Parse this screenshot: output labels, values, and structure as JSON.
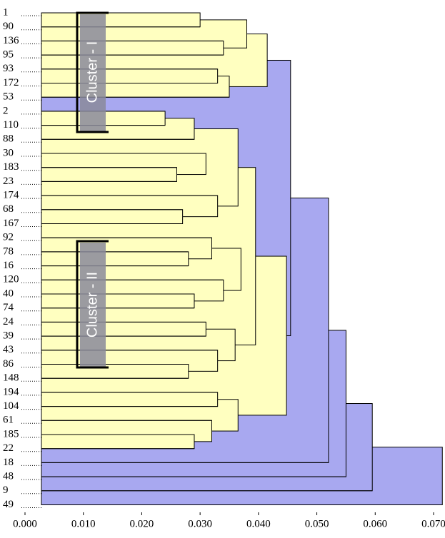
{
  "chart_data": {
    "type": "dendrogram",
    "annotations": [
      "Cluster - I",
      "Cluster - II"
    ],
    "xlim": [
      0,
      0.07
    ],
    "xticks": [
      {
        "value": 0,
        "label": "0.000"
      },
      {
        "value": 0.01,
        "label": "0.010"
      },
      {
        "value": 0.02,
        "label": "0.020"
      },
      {
        "value": 0.03,
        "label": "0.030"
      },
      {
        "value": 0.04,
        "label": "0.040"
      },
      {
        "value": 0.05,
        "label": "0.050"
      },
      {
        "value": 0.06,
        "label": "0.060"
      },
      {
        "value": 0.07,
        "label": "0.070"
      }
    ],
    "tree": {
      "height": 0.0715,
      "color": "#a8a8f0",
      "children": [
        {
          "height": 0.0595,
          "color": "#a8a8f0",
          "children": [
            {
              "height": 0.055,
              "color": "#a8a8f0",
              "children": [
                {
                  "height": 0.052,
                  "color": "#a8a8f0",
                  "children": [
                    {
                      "height": 0.0455,
                      "color": "#a8a8f0",
                      "children": [
                        {
                          "height": 0.0415,
                          "color": "#ffffc0",
                          "children": [
                            {
                              "height": 0.038,
                              "color": "#ffffc0",
                              "children": [
                                {
                                  "height": 0.03,
                                  "color": "#ffffc0",
                                  "children": [
                                    {
                                      "label": "1"
                                    },
                                    {
                                      "label": "90"
                                    }
                                  ]
                                },
                                {
                                  "height": 0.034,
                                  "color": "#ffffc0",
                                  "children": [
                                    {
                                      "label": "136"
                                    },
                                    {
                                      "label": "95"
                                    }
                                  ]
                                }
                              ]
                            },
                            {
                              "height": 0.035,
                              "color": "#ffffc0",
                              "children": [
                                {
                                  "height": 0.033,
                                  "color": "#ffffc0",
                                  "children": [
                                    {
                                      "label": "93"
                                    },
                                    {
                                      "label": "172"
                                    }
                                  ]
                                },
                                {
                                  "label": "53"
                                }
                              ]
                            }
                          ]
                        },
                        {
                          "height": 0.0448,
                          "color": "#ffffc0",
                          "children": [
                            {
                              "height": 0.0395,
                              "color": "#ffffc0",
                              "children": [
                                {
                                  "height": 0.0365,
                                  "color": "#ffffc0",
                                  "children": [
                                    {
                                      "height": 0.029,
                                      "color": "#ffffc0",
                                      "children": [
                                        {
                                          "height": 0.024,
                                          "color": "#ffffc0",
                                          "children": [
                                            {
                                              "label": "2"
                                            },
                                            {
                                              "label": "110"
                                            }
                                          ]
                                        },
                                        {
                                          "label": "88"
                                        }
                                      ]
                                    },
                                    {
                                      "height": 0.031,
                                      "color": "#ffffc0",
                                      "children": [
                                        {
                                          "label": "30"
                                        },
                                        {
                                          "height": 0.026,
                                          "color": "#ffffc0",
                                          "children": [
                                            {
                                              "label": "183"
                                            },
                                            {
                                              "label": "23"
                                            }
                                          ]
                                        }
                                      ]
                                    },
                                    {
                                      "height": 0.033,
                                      "color": "#ffffc0",
                                      "children": [
                                        {
                                          "label": "174"
                                        },
                                        {
                                          "height": 0.027,
                                          "color": "#ffffc0",
                                          "children": [
                                            {
                                              "label": "68"
                                            },
                                            {
                                              "label": "167"
                                            }
                                          ]
                                        }
                                      ]
                                    }
                                  ]
                                },
                                {
                                  "height": 0.037,
                                  "color": "#ffffc0",
                                  "children": [
                                    {
                                      "height": 0.032,
                                      "color": "#ffffc0",
                                      "children": [
                                        {
                                          "label": "92"
                                        },
                                        {
                                          "height": 0.028,
                                          "color": "#ffffc0",
                                          "children": [
                                            {
                                              "label": "78"
                                            },
                                            {
                                              "label": "16"
                                            }
                                          ]
                                        }
                                      ]
                                    },
                                    {
                                      "height": 0.034,
                                      "color": "#ffffc0",
                                      "children": [
                                        {
                                          "label": "120"
                                        },
                                        {
                                          "height": 0.029,
                                          "color": "#ffffc0",
                                          "children": [
                                            {
                                              "label": "40"
                                            },
                                            {
                                              "label": "74"
                                            }
                                          ]
                                        }
                                      ]
                                    }
                                  ]
                                },
                                {
                                  "height": 0.036,
                                  "color": "#ffffc0",
                                  "children": [
                                    {
                                      "height": 0.031,
                                      "color": "#ffffc0",
                                      "children": [
                                        {
                                          "label": "24"
                                        },
                                        {
                                          "label": "39"
                                        }
                                      ]
                                    },
                                    {
                                      "height": 0.033,
                                      "color": "#ffffc0",
                                      "children": [
                                        {
                                          "label": "43"
                                        },
                                        {
                                          "height": 0.028,
                                          "color": "#ffffc0",
                                          "children": [
                                            {
                                              "label": "86"
                                            },
                                            {
                                              "label": "148"
                                            }
                                          ]
                                        }
                                      ]
                                    }
                                  ]
                                }
                              ]
                            },
                            {
                              "height": 0.0365,
                              "color": "#ffffc0",
                              "children": [
                                {
                                  "height": 0.033,
                                  "color": "#ffffc0",
                                  "children": [
                                    {
                                      "label": "194"
                                    },
                                    {
                                      "label": "104"
                                    }
                                  ]
                                },
                                {
                                  "height": 0.032,
                                  "color": "#ffffc0",
                                  "children": [
                                    {
                                      "label": "61"
                                    },
                                    {
                                      "height": 0.029,
                                      "color": "#ffffc0",
                                      "children": [
                                        {
                                          "label": "185"
                                        },
                                        {
                                          "label": "22"
                                        }
                                      ]
                                    }
                                  ]
                                }
                              ]
                            }
                          ]
                        }
                      ]
                    },
                    {
                      "label": "18"
                    }
                  ]
                },
                {
                  "label": "48"
                }
              ]
            },
            {
              "label": "9"
            }
          ]
        },
        {
          "label": "49"
        }
      ]
    }
  }
}
